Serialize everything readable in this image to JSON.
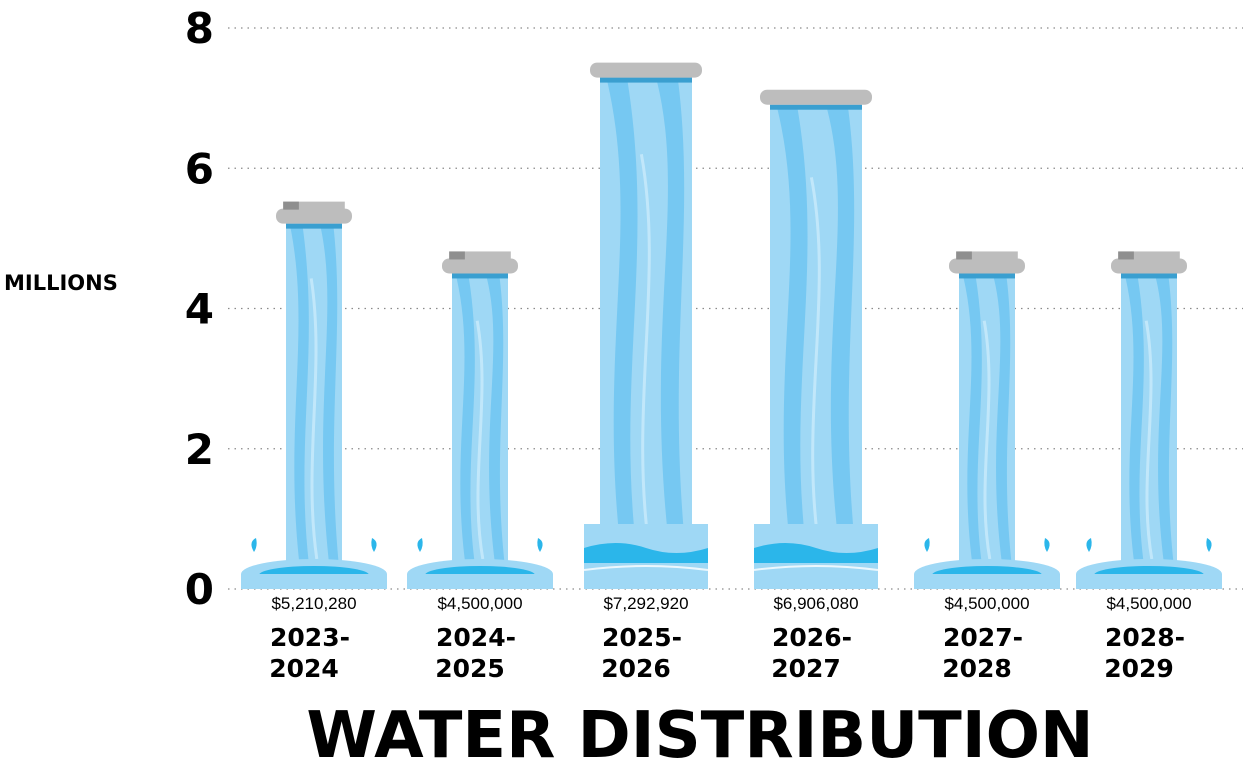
{
  "chart_data": {
    "type": "bar",
    "title": "WATER DISTRIBUTION",
    "ylabel": "MILLIONS",
    "xlabel": "",
    "ylim": [
      0,
      8
    ],
    "yticks": [
      0,
      2,
      4,
      6,
      8
    ],
    "grid": true,
    "categories": [
      "2023-2024",
      "2024-2025",
      "2025-2026",
      "2026-2027",
      "2027-2028",
      "2028-2029"
    ],
    "category_lines": [
      [
        "2023-",
        "2024"
      ],
      [
        "2024-",
        "2025"
      ],
      [
        "2025-",
        "2026"
      ],
      [
        "2026-",
        "2027"
      ],
      [
        "2027-",
        "2028"
      ],
      [
        "2028-",
        "2029"
      ]
    ],
    "values": [
      5210280,
      4500000,
      7292920,
      6906080,
      4500000,
      4500000
    ],
    "value_labels": [
      "$5,210,280",
      "$4,500,000",
      "$7,292,920",
      "$6,906,080",
      "$4,500,000",
      "$4,500,000"
    ],
    "bar_style": [
      "narrow",
      "narrow",
      "wide",
      "wide",
      "narrow",
      "narrow"
    ],
    "colors": {
      "water_light": "#9fd8f5",
      "water_mid": "#6ec6f1",
      "water_deep": "#2bb6ea",
      "water_pale": "#c9ebfb",
      "cap": "#bdbdbd",
      "cap_dark": "#8f8f8f",
      "pipe_band": "#3a9fd0"
    }
  }
}
